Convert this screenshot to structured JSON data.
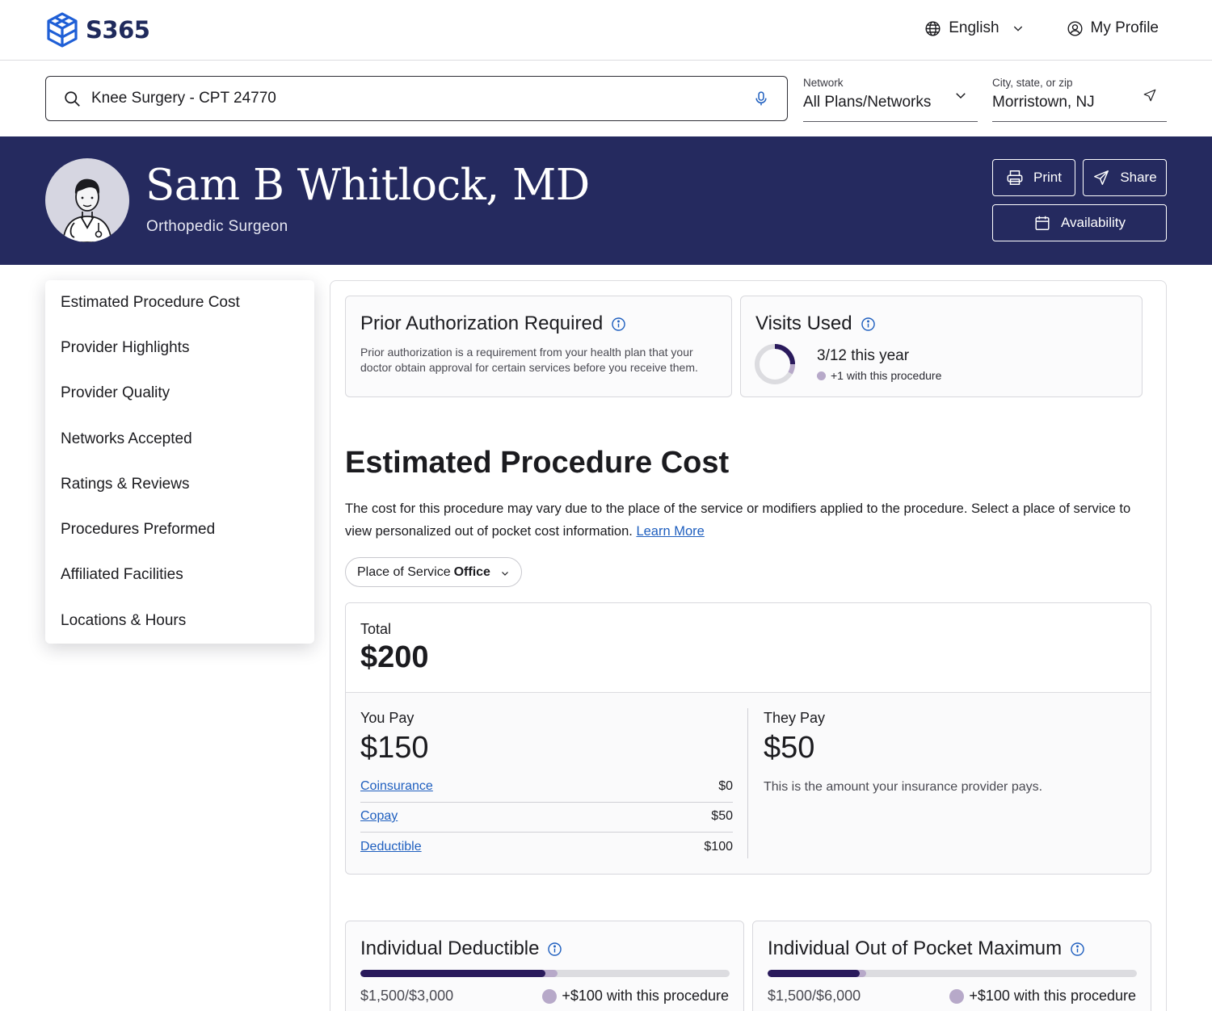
{
  "header": {
    "brand": "S365",
    "language": "English",
    "profile": "My Profile"
  },
  "search": {
    "query": "Knee Surgery - CPT 24770",
    "network_label": "Network",
    "network_value": "All Plans/Networks",
    "city_label": "City, state, or zip",
    "city_value": "Morristown, NJ"
  },
  "provider": {
    "name": "Sam B Whitlock, MD",
    "specialty": "Orthopedic Surgeon",
    "print_label": "Print",
    "share_label": "Share",
    "availability_label": "Availability"
  },
  "sidebar": {
    "items": [
      {
        "label": "Estimated Procedure Cost"
      },
      {
        "label": "Provider Highlights"
      },
      {
        "label": "Provider Quality"
      },
      {
        "label": "Networks Accepted"
      },
      {
        "label": "Ratings & Reviews"
      },
      {
        "label": "Procedures Preformed"
      },
      {
        "label": "Affiliated Facilities"
      },
      {
        "label": "Locations & Hours"
      }
    ]
  },
  "prior_auth": {
    "title": "Prior Authorization Required",
    "description": "Prior authorization is a requirement from your health plan that your doctor obtain approval for certain services before you receive them."
  },
  "visits": {
    "title": "Visits Used",
    "summary": "3/12 this year",
    "note": "+1 with this procedure",
    "used": 3,
    "total": 12,
    "added": 1
  },
  "cost": {
    "title": "Estimated Procedure Cost",
    "description": "The cost for this procedure may vary due to the place of the service or modifiers applied to the procedure. Select a place of service to view personalized out of pocket cost information.",
    "learn_more": "Learn More",
    "place_prefix": "Place of Service",
    "place_value": "Office",
    "total_label": "Total",
    "total_value": "$200",
    "you_pay_label": "You Pay",
    "you_pay_value": "$150",
    "they_pay_label": "They Pay",
    "they_pay_value": "$50",
    "they_pay_desc": "This is the amount your insurance provider pays.",
    "rows": [
      {
        "label": "Coinsurance",
        "value": "$0"
      },
      {
        "label": "Copay",
        "value": "$50"
      },
      {
        "label": "Deductible",
        "value": "$100"
      }
    ]
  },
  "deductible": {
    "title": "Individual Deductible",
    "amount": "$1,500/$3,000",
    "note": "+$100 with this procedure",
    "used_fraction": 0.5,
    "added_fraction": 0.0333
  },
  "oop": {
    "title": "Individual Out of Pocket Maximum",
    "amount": "$1,500/$6,000",
    "note": "+$100 with this procedure",
    "used_fraction": 0.25,
    "added_fraction": 0.0167
  },
  "colors": {
    "brand_navy": "#252a5f",
    "logo_blue": "#1f5fd6",
    "progress_used": "#2a1a5c",
    "progress_added": "#b7a9c9",
    "link_blue": "#1f5fbf"
  }
}
